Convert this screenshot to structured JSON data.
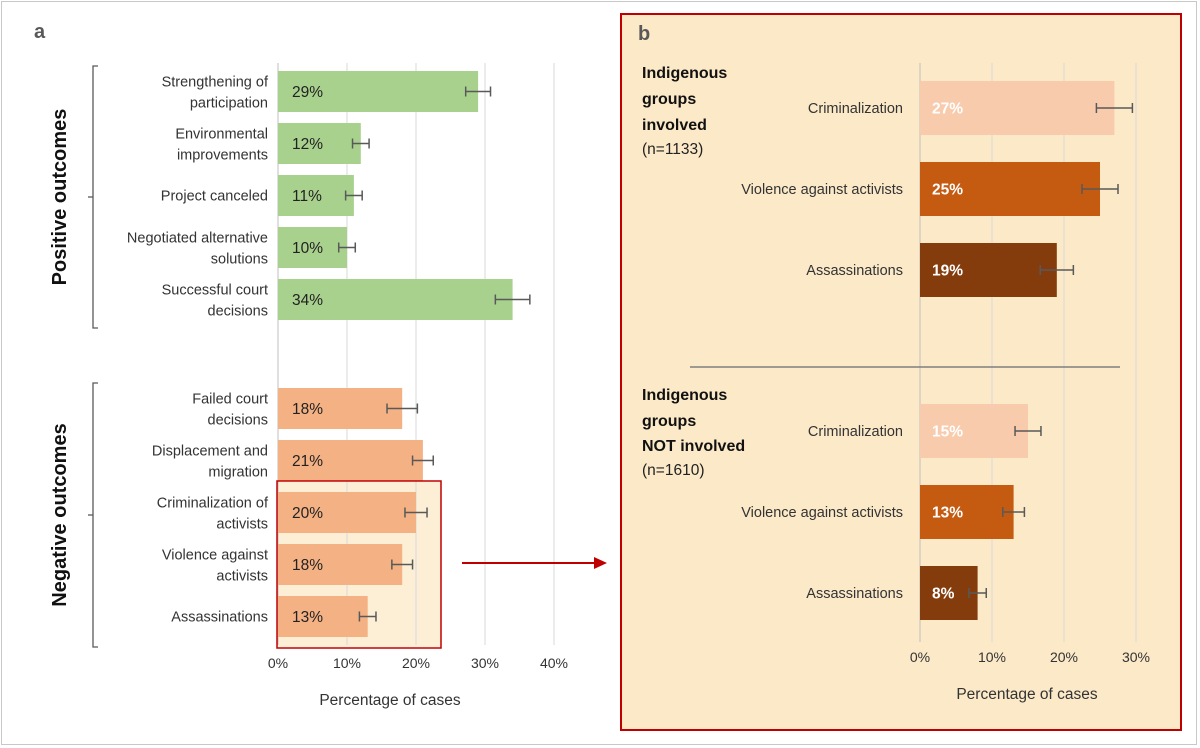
{
  "chart_data": [
    {
      "type": "bar",
      "panel_label": "a",
      "xlabel": "Percentage of cases",
      "xticks": [
        "0%",
        "10%",
        "20%",
        "30%",
        "40%"
      ],
      "xlim": [
        0,
        40
      ],
      "orientation": "horizontal",
      "grid": true,
      "groups": [
        {
          "name": "Positive outcomes",
          "color": "#a9d18e",
          "bars": [
            {
              "label": [
                "Strengthening of",
                "participation"
              ],
              "value": 29,
              "value_label": "29%",
              "err": 1.8
            },
            {
              "label": [
                "Environmental",
                "improvements"
              ],
              "value": 12,
              "value_label": "12%",
              "err": 1.2
            },
            {
              "label": [
                "Project canceled"
              ],
              "value": 11,
              "value_label": "11%",
              "err": 1.2
            },
            {
              "label": [
                "Negotiated alternative",
                "solutions"
              ],
              "value": 10,
              "value_label": "10%",
              "err": 1.2
            },
            {
              "label": [
                "Successful court",
                "decisions"
              ],
              "value": 34,
              "value_label": "34%",
              "err": 2.5
            }
          ]
        },
        {
          "name": "Negative outcomes",
          "color": "#f4b183",
          "bars": [
            {
              "label": [
                "Failed court",
                "decisions"
              ],
              "value": 18,
              "value_label": "18%",
              "err": 2.2
            },
            {
              "label": [
                "Displacement and",
                "migration"
              ],
              "value": 21,
              "value_label": "21%",
              "err": 1.5
            },
            {
              "label": [
                "Criminalization of",
                "activists"
              ],
              "value": 20,
              "value_label": "20%",
              "err": 1.6
            },
            {
              "label": [
                "Violence against",
                "activists"
              ],
              "value": 18,
              "value_label": "18%",
              "err": 1.5
            },
            {
              "label": [
                "Assassinations"
              ],
              "value": 13,
              "value_label": "13%",
              "err": 1.2
            }
          ]
        }
      ]
    },
    {
      "type": "bar",
      "panel_label": "b",
      "xlabel": "Percentage of cases",
      "xticks": [
        "0%",
        "10%",
        "20%",
        "30%"
      ],
      "xlim": [
        0,
        30
      ],
      "orientation": "horizontal",
      "grid": true,
      "groups": [
        {
          "heading": [
            "Indigenous",
            "groups",
            "involved"
          ],
          "n": "(n=1133)",
          "bars": [
            {
              "label": "Criminalization",
              "value": 27,
              "value_label": "27%",
              "err": 2.5,
              "color": "#f8cbad"
            },
            {
              "label": "Violence against activists",
              "value": 25,
              "value_label": "25%",
              "err": 2.5,
              "color": "#c55a11"
            },
            {
              "label": "Assassinations",
              "value": 19,
              "value_label": "19%",
              "err": 2.3,
              "color": "#843c0c"
            }
          ]
        },
        {
          "heading": [
            "Indigenous",
            "groups",
            "NOT involved"
          ],
          "n": "(n=1610)",
          "bars": [
            {
              "label": "Criminalization",
              "value": 15,
              "value_label": "15%",
              "err": 1.8,
              "color": "#f8cbad"
            },
            {
              "label": "Violence against activists",
              "value": 13,
              "value_label": "13%",
              "err": 1.5,
              "color": "#c55a11"
            },
            {
              "label": "Assassinations",
              "value": 8,
              "value_label": "8%",
              "err": 1.2,
              "color": "#843c0c"
            }
          ]
        }
      ]
    }
  ],
  "colors": {
    "highlight_box": "#c00000",
    "panel_b_bg": "#fbe9c8",
    "grid": "#d9d9d9",
    "errorbar": "#595959",
    "axis_bracket": "#595959"
  }
}
